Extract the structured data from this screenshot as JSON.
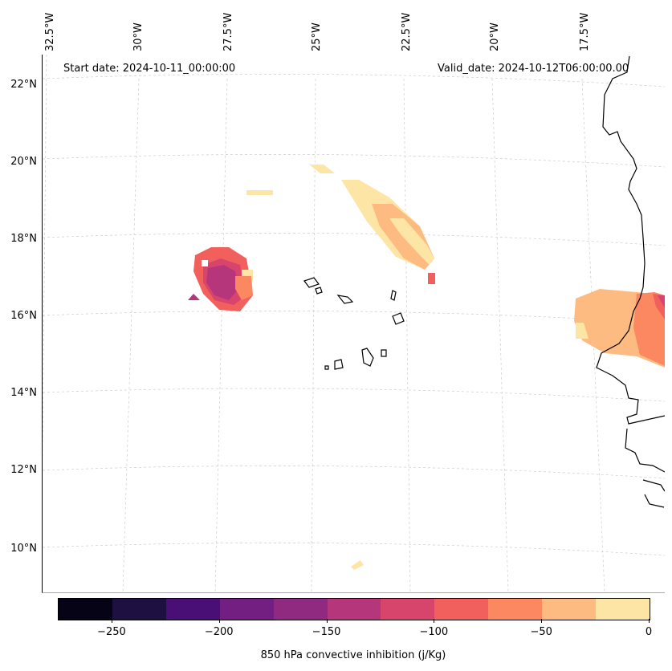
{
  "start_date": "Start date: 2024-10-11_00:00:00",
  "valid_date": "Valid_date: 2024-10-12T06:00:00.00",
  "lon_labels": [
    "32.5°W",
    "30°W",
    "27.5°W",
    "25°W",
    "22.5°W",
    "20°W",
    "17.5°W"
  ],
  "lat_labels": [
    "22°N",
    "20°N",
    "18°N",
    "16°N",
    "14°N",
    "12°N",
    "10°N"
  ],
  "colorbar": {
    "title": "850 hPa convective inhibition (j/Kg)",
    "tick_labels": [
      "−250",
      "−200",
      "−150",
      "−100",
      "−50",
      "0"
    ],
    "range": [
      -275,
      0
    ],
    "colors": [
      "#050315",
      "#1e1040",
      "#4a0f76",
      "#721f81",
      "#8f2a80",
      "#b5367a",
      "#d8456c",
      "#f1605d",
      "#fb8861",
      "#febb81",
      "#fde5a6"
    ]
  },
  "icons": {
    "coastline": "coastline-outline",
    "contour": "filled-contour"
  }
}
